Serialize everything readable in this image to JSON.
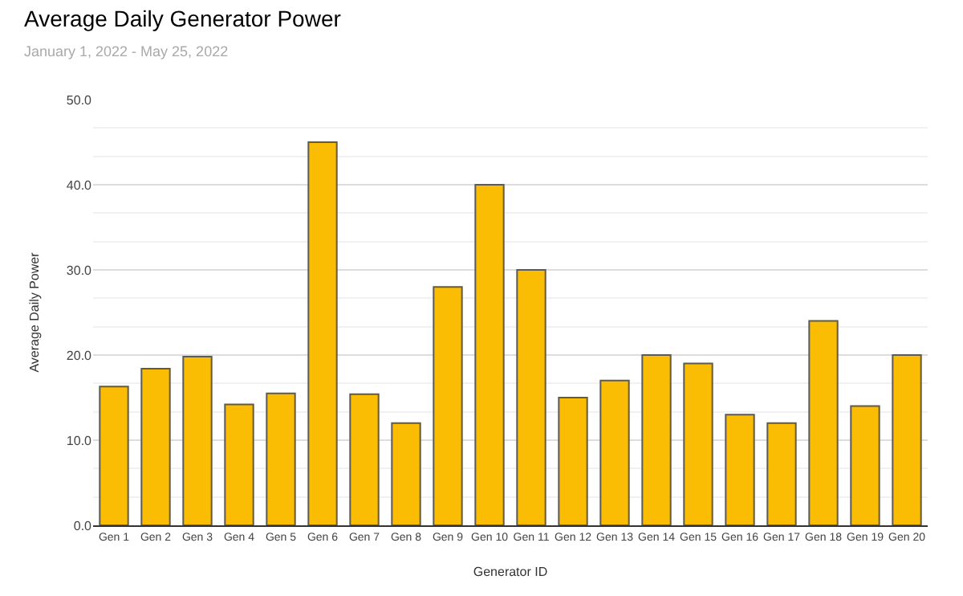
{
  "chart_data": {
    "type": "bar",
    "title": "Average Daily Generator Power",
    "subtitle": "January 1, 2022 - May 25, 2022",
    "xlabel": "Generator ID",
    "ylabel": "Average Daily Power",
    "categories": [
      "Gen 1",
      "Gen 2",
      "Gen 3",
      "Gen 4",
      "Gen 5",
      "Gen 6",
      "Gen 7",
      "Gen 8",
      "Gen 9",
      "Gen 10",
      "Gen 11",
      "Gen 12",
      "Gen 13",
      "Gen 14",
      "Gen 15",
      "Gen 16",
      "Gen 17",
      "Gen 18",
      "Gen 19",
      "Gen 20"
    ],
    "values": [
      16.3,
      18.4,
      19.8,
      14.2,
      15.5,
      45.0,
      15.4,
      12.0,
      28.0,
      40.0,
      30.0,
      15.0,
      17.0,
      20.0,
      19.0,
      13.0,
      12.0,
      24.0,
      14.0,
      20.0
    ],
    "color": "#fbbc04",
    "ylim": [
      0,
      50
    ],
    "yticks": [
      {
        "value": 0,
        "label": "0.0"
      },
      {
        "value": 10,
        "label": "10.0"
      },
      {
        "value": 20,
        "label": "20.0"
      },
      {
        "value": 30,
        "label": "30.0"
      },
      {
        "value": 40,
        "label": "40.0"
      },
      {
        "value": 50,
        "label": "50.0"
      }
    ],
    "grid": "y"
  }
}
